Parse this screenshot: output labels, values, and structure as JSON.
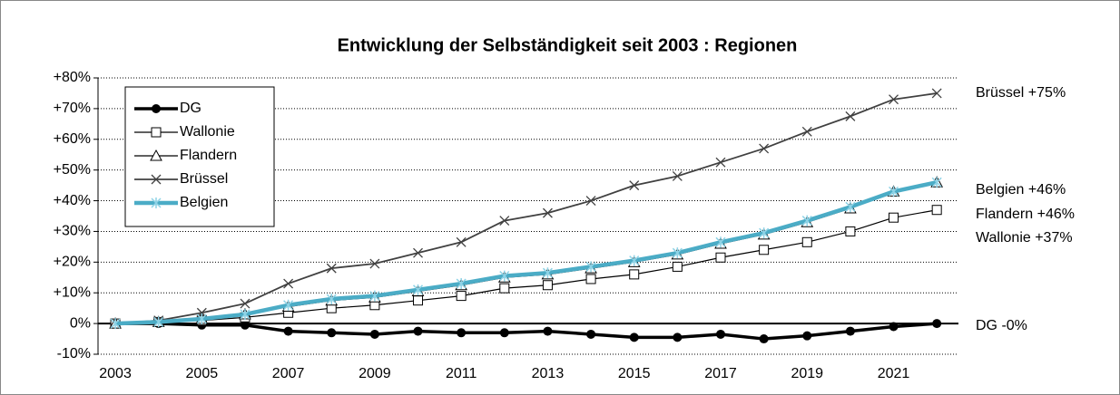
{
  "chart_data": {
    "type": "line",
    "title": "Entwicklung der Selbständigkeit seit 2003 : Regionen",
    "x": [
      2003,
      2004,
      2005,
      2006,
      2007,
      2008,
      2009,
      2010,
      2011,
      2012,
      2013,
      2014,
      2015,
      2016,
      2017,
      2018,
      2019,
      2020,
      2021,
      2022
    ],
    "xlim": [
      2002.6,
      2022.5
    ],
    "xticks": [
      2003,
      2005,
      2007,
      2009,
      2011,
      2013,
      2015,
      2017,
      2019,
      2021
    ],
    "ylim": [
      -10,
      80
    ],
    "yticks": [
      {
        "value": -10,
        "label": "-10%"
      },
      {
        "value": 0,
        "label": "0%"
      },
      {
        "value": 10,
        "label": "+10%"
      },
      {
        "value": 20,
        "label": "+20%"
      },
      {
        "value": 30,
        "label": "+30%"
      },
      {
        "value": 40,
        "label": "+40%"
      },
      {
        "value": 50,
        "label": "+50%"
      },
      {
        "value": 60,
        "label": "+60%"
      },
      {
        "value": 70,
        "label": "+70%"
      },
      {
        "value": 80,
        "label": "+80%"
      }
    ],
    "grid": true,
    "legend": "upper left",
    "series": [
      {
        "name": "DG",
        "color": "#000000",
        "marker": "circle",
        "values": [
          0,
          0,
          -0.5,
          -0.5,
          -2.5,
          -3,
          -3.5,
          -2.5,
          -3,
          -3,
          -2.5,
          -3.5,
          -4.5,
          -4.5,
          -3.5,
          -5,
          -4,
          -2.5,
          -1,
          0
        ]
      },
      {
        "name": "Wallonie",
        "color": "#000000",
        "marker": "square",
        "values": [
          0,
          0.5,
          1,
          2,
          3.5,
          5,
          6,
          7.5,
          9,
          11.5,
          12.5,
          14.5,
          16,
          18.5,
          21.5,
          24,
          26.5,
          30,
          34.5,
          37
        ]
      },
      {
        "name": "Flandern",
        "color": "#000000",
        "marker": "triangle",
        "values": [
          0,
          0.5,
          1.5,
          3,
          5.5,
          7.5,
          8.5,
          10.5,
          12.5,
          15,
          16,
          18,
          20,
          22.5,
          26,
          29,
          33,
          37.5,
          43,
          46
        ]
      },
      {
        "name": "Brüssel",
        "color": "#404040",
        "marker": "x",
        "values": [
          0,
          1,
          3.5,
          6.5,
          13,
          18,
          19.5,
          23,
          26.5,
          33.5,
          36,
          40,
          45,
          48,
          52.5,
          57,
          62.5,
          67.5,
          73,
          75
        ]
      },
      {
        "name": "Belgien",
        "color": "#4bacc6",
        "marker": "star",
        "values": [
          0,
          0.5,
          1.5,
          3,
          6,
          8,
          9,
          11,
          13,
          15.5,
          16.5,
          18.5,
          20.5,
          23,
          26.5,
          29.5,
          33.5,
          38,
          43,
          46
        ]
      }
    ],
    "annotations": [
      "Brüssel +75%",
      "Belgien +46%",
      "Flandern +46%",
      "Wallonie +37%",
      "DG -0%"
    ]
  }
}
